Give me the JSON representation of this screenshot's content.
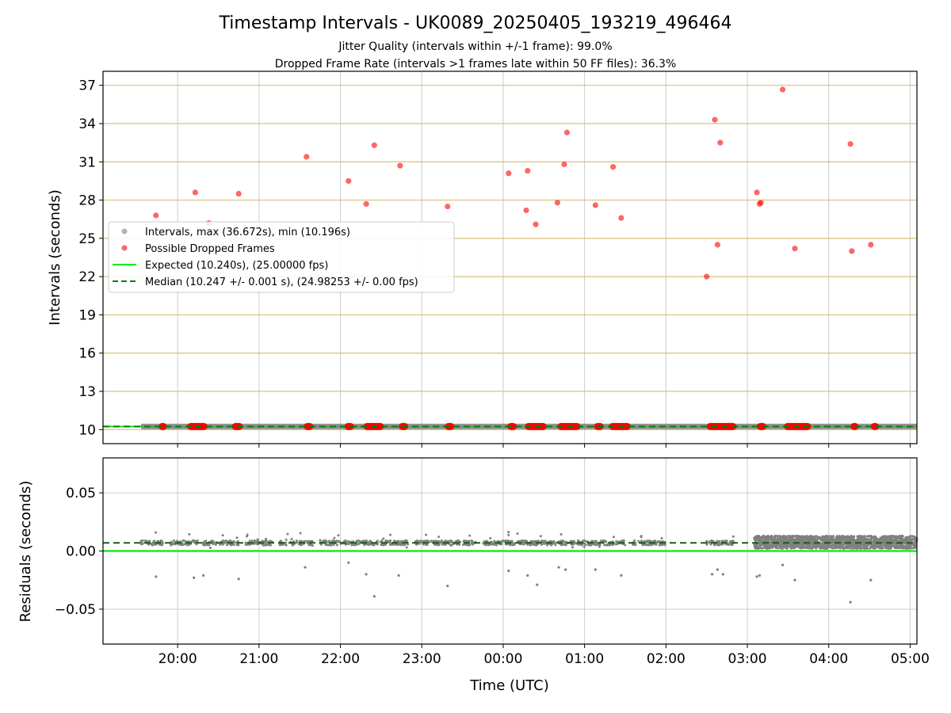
{
  "title": "Timestamp Intervals - UK0089_20250405_193219_496464",
  "subtitle_lines": [
    "Jitter Quality (intervals within +/-1 frame): 99.0%",
    "Dropped Frame Rate (intervals >1 frames late within 50 FF files): 36.3%"
  ],
  "colors": {
    "intervals": "#808080",
    "dropped": "#ff0000",
    "expected": "#00ee00",
    "median": "#007f00",
    "hgrid_top": "#d6c27a",
    "vgrid": "#cccccc"
  },
  "chart_data": [
    {
      "type": "scatter",
      "panel": "intervals",
      "ylabel": "Intervals (seconds)",
      "xlabel": "",
      "xlim": [
        "19:05",
        "05:05"
      ],
      "ylim": [
        8.9,
        38.1
      ],
      "yticks": [
        10,
        13,
        16,
        19,
        22,
        25,
        28,
        31,
        34,
        37
      ],
      "xtick_labels": [
        "20:00",
        "21:00",
        "22:00",
        "23:00",
        "00:00",
        "01:00",
        "02:00",
        "03:00",
        "04:00",
        "05:00"
      ],
      "grid": "on",
      "legend_position": "center-left",
      "legend": [
        "Intervals, max (36.672s), min (10.196s)",
        "Possible Dropped Frames",
        "Expected (10.240s), (25.00000 fps)",
        "Median (10.247 +/- 0.001 s), (24.98253 +/- 0.00 fps)"
      ],
      "expected_value": 10.24,
      "median_value": 10.247,
      "baseline_interval_range": {
        "from": "19:33",
        "to": "05:05",
        "value": 10.247
      },
      "dropped_frame_clusters_at_baseline": [
        [
          "19:46",
          "19:52"
        ],
        [
          "20:07",
          "20:22"
        ],
        [
          "20:40",
          "20:48"
        ],
        [
          "21:33",
          "21:40"
        ],
        [
          "22:03",
          "22:10"
        ],
        [
          "22:17",
          "22:32"
        ],
        [
          "22:43",
          "22:50"
        ],
        [
          "23:17",
          "23:24"
        ],
        [
          "00:03",
          "00:10"
        ],
        [
          "00:16",
          "00:32"
        ],
        [
          "00:40",
          "00:57"
        ],
        [
          "01:07",
          "01:14"
        ],
        [
          "01:18",
          "01:34"
        ],
        [
          "02:30",
          "02:52"
        ],
        [
          "03:07",
          "03:14"
        ],
        [
          "03:27",
          "03:47"
        ],
        [
          "04:16",
          "04:22"
        ],
        [
          "04:31",
          "04:37"
        ]
      ],
      "series": [
        {
          "name": "Possible Dropped Frames",
          "points": [
            [
              "19:44",
              26.8
            ],
            [
              "20:13",
              28.6
            ],
            [
              "20:23",
              26.2
            ],
            [
              "20:45",
              28.5
            ],
            [
              "21:35",
              31.4
            ],
            [
              "22:06",
              29.5
            ],
            [
              "22:19",
              27.7
            ],
            [
              "22:25",
              32.3
            ],
            [
              "22:44",
              30.7
            ],
            [
              "23:19",
              27.5
            ],
            [
              "00:04",
              30.1
            ],
            [
              "00:17",
              27.2
            ],
            [
              "00:18",
              30.3
            ],
            [
              "00:24",
              26.1
            ],
            [
              "00:40",
              27.8
            ],
            [
              "00:45",
              30.8
            ],
            [
              "00:47",
              33.3
            ],
            [
              "01:08",
              27.6
            ],
            [
              "01:21",
              30.6
            ],
            [
              "01:27",
              26.6
            ],
            [
              "02:30",
              22.0
            ],
            [
              "02:36",
              34.3
            ],
            [
              "02:38",
              24.5
            ],
            [
              "02:40",
              32.5
            ],
            [
              "03:07",
              28.6
            ],
            [
              "03:09",
              27.7
            ],
            [
              "03:10",
              27.8
            ],
            [
              "03:26",
              36.672
            ],
            [
              "03:35",
              24.2
            ],
            [
              "04:16",
              32.4
            ],
            [
              "04:17",
              24.0
            ],
            [
              "04:31",
              24.5
            ]
          ]
        }
      ]
    },
    {
      "type": "scatter",
      "panel": "residuals",
      "ylabel": "Residuals (seconds)",
      "xlabel": "Time (UTC)",
      "xlim": [
        "19:05",
        "05:05"
      ],
      "ylim": [
        -0.08,
        0.08
      ],
      "yticks": [
        0.05,
        0.0,
        -0.05
      ],
      "ytick_labels": [
        "0.05",
        "0.00",
        "−0.05"
      ],
      "xtick_labels": [
        "20:00",
        "21:00",
        "22:00",
        "23:00",
        "00:00",
        "01:00",
        "02:00",
        "03:00",
        "04:00",
        "05:00"
      ],
      "grid": "on",
      "expected_residual": 0.0,
      "median_residual": 0.007,
      "dense_regions": [
        [
          "19:33",
          "19:50"
        ],
        [
          "19:55",
          "20:15"
        ],
        [
          "20:18",
          "20:45"
        ],
        [
          "20:50",
          "21:10"
        ],
        [
          "21:15",
          "21:40"
        ],
        [
          "21:45",
          "22:05"
        ],
        [
          "22:05",
          "22:50"
        ],
        [
          "22:55",
          "23:15"
        ],
        [
          "23:15",
          "23:40"
        ],
        [
          "23:45",
          "00:05"
        ],
        [
          "00:05",
          "00:35"
        ],
        [
          "00:35",
          "01:00"
        ],
        [
          "01:00",
          "01:30"
        ],
        [
          "01:35",
          "02:00"
        ],
        [
          "02:30",
          "02:50"
        ],
        [
          "03:05",
          "05:05"
        ]
      ],
      "series": [
        {
          "name": "outliers",
          "points": [
            [
              "19:44",
              -0.022
            ],
            [
              "20:12",
              -0.023
            ],
            [
              "20:19",
              -0.021
            ],
            [
              "20:45",
              -0.024
            ],
            [
              "21:34",
              -0.014
            ],
            [
              "22:06",
              -0.01
            ],
            [
              "22:19",
              -0.02
            ],
            [
              "22:25",
              -0.039
            ],
            [
              "22:43",
              -0.021
            ],
            [
              "23:19",
              -0.03
            ],
            [
              "00:04",
              -0.017
            ],
            [
              "00:18",
              -0.021
            ],
            [
              "00:25",
              -0.029
            ],
            [
              "00:41",
              -0.014
            ],
            [
              "00:46",
              -0.016
            ],
            [
              "01:08",
              -0.016
            ],
            [
              "01:27",
              -0.021
            ],
            [
              "02:34",
              -0.02
            ],
            [
              "02:38",
              -0.016
            ],
            [
              "02:42",
              -0.02
            ],
            [
              "03:07",
              -0.022
            ],
            [
              "03:09",
              -0.021
            ],
            [
              "03:26",
              -0.012
            ],
            [
              "03:35",
              -0.025
            ],
            [
              "04:16",
              -0.044
            ],
            [
              "04:31",
              -0.025
            ]
          ]
        }
      ]
    }
  ]
}
